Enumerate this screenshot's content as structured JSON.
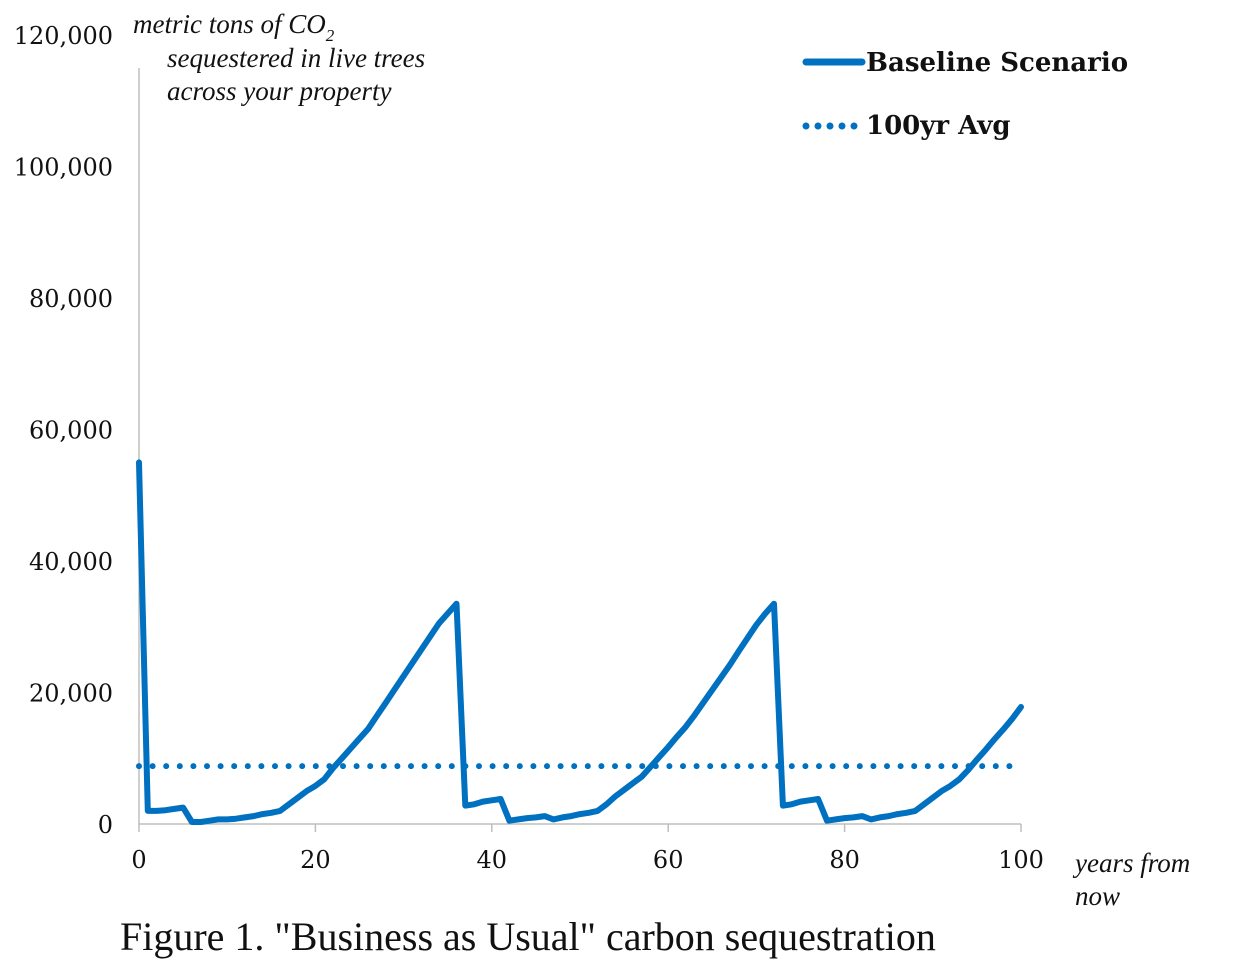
{
  "caption": "Figure 1. \"Business as Usual\" carbon sequestration",
  "chart_data": {
    "type": "line",
    "title": "",
    "ylabel_lines": [
      "metric tons of CO",
      "sequestered in live trees",
      "across your property"
    ],
    "ylabel_subscript": "2",
    "xlabel_lines": [
      "years from",
      "now"
    ],
    "xlim": [
      0,
      100
    ],
    "ylim": [
      0,
      120000
    ],
    "xticks": [
      0,
      20,
      40,
      60,
      80,
      100
    ],
    "xtick_labels": [
      "0",
      "20",
      "40",
      "60",
      "80",
      "100"
    ],
    "yticks": [
      0,
      20000,
      40000,
      60000,
      80000,
      100000,
      120000
    ],
    "ytick_labels": [
      "0",
      "20,000",
      "40,000",
      "60,000",
      "80,000",
      "100,000",
      "120,000"
    ],
    "grid": false,
    "legend_position": "top-right",
    "series": [
      {
        "name": "Baseline Scenario",
        "style": "solid",
        "color": "#0070c0",
        "x": [
          0,
          1,
          2,
          3,
          4,
          5,
          6,
          7,
          8,
          9,
          10,
          11,
          12,
          13,
          14,
          15,
          16,
          17,
          18,
          19,
          20,
          21,
          22,
          23,
          24,
          25,
          26,
          27,
          28,
          29,
          30,
          31,
          32,
          33,
          34,
          35,
          36,
          37,
          38,
          39,
          40,
          41,
          42,
          43,
          44,
          45,
          46,
          47,
          48,
          49,
          50,
          51,
          52,
          53,
          54,
          55,
          56,
          57,
          58,
          59,
          60,
          61,
          62,
          63,
          64,
          65,
          66,
          67,
          68,
          69,
          70,
          71,
          72,
          73,
          74,
          75,
          76,
          77,
          78,
          79,
          80,
          81,
          82,
          83,
          84,
          85,
          86,
          87,
          88,
          89,
          90,
          91,
          92,
          93,
          94,
          95,
          96,
          97,
          98,
          99,
          100
        ],
        "values": [
          55000,
          2000,
          2000,
          2100,
          2300,
          2500,
          300,
          300,
          500,
          700,
          700,
          800,
          1000,
          1200,
          1500,
          1700,
          2000,
          3000,
          4000,
          5000,
          5800,
          6800,
          8500,
          10000,
          11500,
          13000,
          14500,
          16500,
          18500,
          20500,
          22500,
          24500,
          26500,
          28500,
          30500,
          32000,
          33500,
          2800,
          3000,
          3400,
          3600,
          3800,
          500,
          700,
          900,
          1000,
          1200,
          700,
          1000,
          1200,
          1500,
          1700,
          2000,
          3000,
          4200,
          5200,
          6200,
          7200,
          8700,
          10200,
          11700,
          13300,
          14800,
          16600,
          18500,
          20400,
          22300,
          24200,
          26300,
          28300,
          30300,
          32000,
          33500,
          2800,
          3000,
          3400,
          3600,
          3800,
          500,
          700,
          900,
          1000,
          1200,
          700,
          1000,
          1200,
          1500,
          1700,
          2000,
          3000,
          4000,
          5000,
          5800,
          6800,
          8200,
          9800,
          11300,
          12900,
          14400,
          16000,
          17800
        ]
      },
      {
        "name": "100yr Avg",
        "style": "dotted",
        "color": "#0070c0",
        "x": [
          0,
          100
        ],
        "values": [
          8800,
          8800
        ]
      }
    ]
  }
}
